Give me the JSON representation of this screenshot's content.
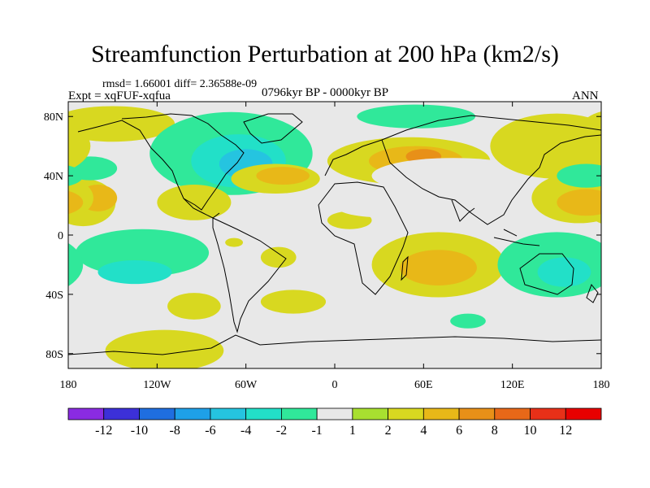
{
  "chart_data": {
    "type": "heatmap",
    "title": "Streamfunction Perturbation at 200 hPa (km2/s)",
    "rmsd_text": "rmsd= 1.66001 diff= 2.36588e-09",
    "experiment_text": "Expt = xqFUF-xqfua",
    "period_text": "0796kyr BP - 0000kyr BP",
    "season_text": "ANN",
    "x_ticks": [
      {
        "label": "180",
        "lon": -180
      },
      {
        "label": "120W",
        "lon": -120
      },
      {
        "label": "60W",
        "lon": -60
      },
      {
        "label": "0",
        "lon": 0
      },
      {
        "label": "60E",
        "lon": 60
      },
      {
        "label": "120E",
        "lon": 120
      },
      {
        "label": "180",
        "lon": 180
      }
    ],
    "y_ticks": [
      {
        "label": "80N",
        "lat": 80
      },
      {
        "label": "40N",
        "lat": 40
      },
      {
        "label": "0",
        "lat": 0
      },
      {
        "label": "40S",
        "lat": -40
      },
      {
        "label": "80S",
        "lat": -80
      }
    ],
    "xlim": [
      -180,
      180
    ],
    "ylim": [
      -90,
      90
    ],
    "levels": [
      -12,
      -10,
      -8,
      -6,
      -4,
      -2,
      -1,
      1,
      2,
      4,
      6,
      8,
      10,
      12
    ],
    "level_labels": [
      "-12",
      "-10",
      "-8",
      "-6",
      "-4",
      "-2",
      "-1",
      "1",
      "2",
      "4",
      "6",
      "8",
      "10",
      "12"
    ],
    "colorbar_colors": [
      "#8a2be2",
      "#3c30d8",
      "#1f6ee0",
      "#1ea0e8",
      "#25c4e0",
      "#22e0c8",
      "#30e89a",
      "#e8e8e8",
      "#a8e030",
      "#d8d820",
      "#e8b818",
      "#e89018",
      "#e86818",
      "#e83018",
      "#e80000"
    ],
    "field_regions": [
      {
        "lon": -170,
        "lat": 22,
        "rlon": 22,
        "rlat": 16,
        "value": 2
      },
      {
        "lon": -160,
        "lat": 25,
        "rlon": 13,
        "rlat": 9,
        "value": 4
      },
      {
        "lon": -165,
        "lat": 45,
        "rlon": 18,
        "rlat": 8,
        "value": -2
      },
      {
        "lon": -150,
        "lat": 75,
        "rlon": 42,
        "rlat": 12,
        "value": 2
      },
      {
        "lon": -130,
        "lat": -12,
        "rlon": 45,
        "rlat": 16,
        "value": -2
      },
      {
        "lon": -135,
        "lat": -25,
        "rlon": 25,
        "rlat": 8,
        "value": -4
      },
      {
        "lon": -95,
        "lat": -48,
        "rlon": 18,
        "rlat": 9,
        "value": 2
      },
      {
        "lon": -70,
        "lat": 55,
        "rlon": 55,
        "rlat": 28,
        "value": -2
      },
      {
        "lon": -65,
        "lat": 50,
        "rlon": 32,
        "rlat": 18,
        "value": -4
      },
      {
        "lon": -60,
        "lat": 48,
        "rlon": 18,
        "rlat": 10,
        "value": -6
      },
      {
        "lon": -95,
        "lat": 22,
        "rlon": 25,
        "rlat": 12,
        "value": 2
      },
      {
        "lon": -40,
        "lat": 38,
        "rlon": 30,
        "rlat": 10,
        "value": 2
      },
      {
        "lon": -35,
        "lat": 40,
        "rlon": 18,
        "rlat": 6,
        "value": 4
      },
      {
        "lon": -38,
        "lat": -15,
        "rlon": 12,
        "rlat": 7,
        "value": 2
      },
      {
        "lon": -68,
        "lat": -5,
        "rlon": 6,
        "rlat": 3,
        "value": 2
      },
      {
        "lon": -28,
        "lat": -45,
        "rlon": 22,
        "rlat": 8,
        "value": 2
      },
      {
        "lon": 10,
        "lat": 10,
        "rlon": 15,
        "rlat": 6,
        "value": 2
      },
      {
        "lon": 50,
        "lat": 50,
        "rlon": 55,
        "rlat": 16,
        "value": 2
      },
      {
        "lon": 55,
        "lat": 50,
        "rlon": 32,
        "rlat": 10,
        "value": 4
      },
      {
        "lon": 60,
        "lat": 53,
        "rlon": 12,
        "rlat": 5,
        "value": 6
      },
      {
        "lon": 55,
        "lat": 80,
        "rlon": 40,
        "rlat": 8,
        "value": -2
      },
      {
        "lon": 80,
        "lat": 40,
        "rlon": 55,
        "rlat": 12,
        "value": -1
      },
      {
        "lon": 30,
        "lat": 20,
        "rlon": 30,
        "rlat": 8,
        "value": -1
      },
      {
        "lon": 70,
        "lat": -20,
        "rlon": 45,
        "rlat": 22,
        "value": 2
      },
      {
        "lon": 70,
        "lat": -22,
        "rlon": 26,
        "rlat": 12,
        "value": 4
      },
      {
        "lon": 90,
        "lat": -58,
        "rlon": 12,
        "rlat": 5,
        "value": -2
      },
      {
        "lon": 150,
        "lat": 60,
        "rlon": 45,
        "rlat": 22,
        "value": 2
      },
      {
        "lon": 165,
        "lat": 25,
        "rlon": 32,
        "rlat": 17,
        "value": 2
      },
      {
        "lon": 170,
        "lat": 22,
        "rlon": 20,
        "rlat": 9,
        "value": 4
      },
      {
        "lon": 170,
        "lat": 40,
        "rlon": 20,
        "rlat": 8,
        "value": -2
      },
      {
        "lon": 150,
        "lat": -20,
        "rlon": 40,
        "rlat": 22,
        "value": -2
      },
      {
        "lon": 155,
        "lat": -25,
        "rlon": 18,
        "rlat": 10,
        "value": -4
      },
      {
        "lon": -115,
        "lat": -78,
        "rlon": 40,
        "rlat": 14,
        "value": 2
      }
    ]
  }
}
